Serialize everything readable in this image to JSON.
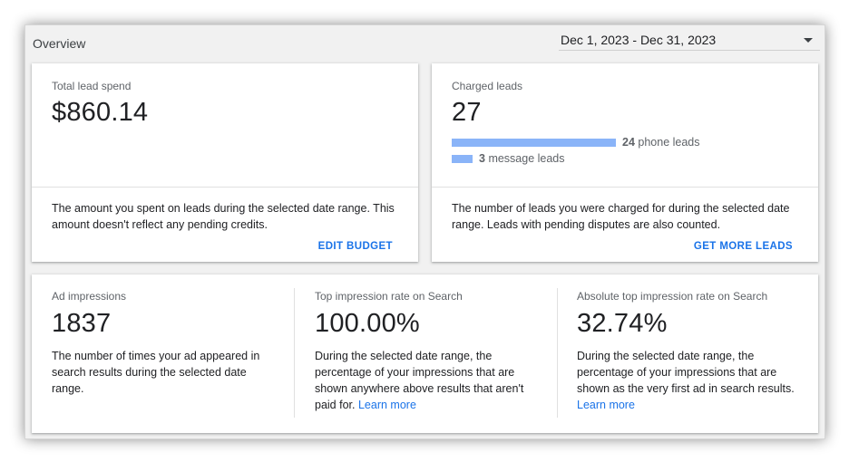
{
  "header": {
    "title": "Overview",
    "date_range": "Dec 1, 2023 - Dec 31, 2023"
  },
  "spend_card": {
    "label": "Total lead spend",
    "value": "$860.14",
    "description": "The amount you spent on leads during the selected date range. This amount doesn't reflect any pending credits.",
    "action": "EDIT BUDGET"
  },
  "leads_card": {
    "label": "Charged leads",
    "value": "27",
    "breakdown": [
      {
        "count": "24",
        "label": "phone leads",
        "leads": 24
      },
      {
        "count": "3",
        "label": "message leads",
        "leads": 3
      }
    ],
    "description": "The number of leads you were charged for during the selected date range. Leads with pending disputes are also counted.",
    "action": "GET MORE LEADS"
  },
  "metrics": [
    {
      "label": "Ad impressions",
      "value": "1837",
      "description": "The number of times your ad appeared in search results during the selected date range.",
      "link": ""
    },
    {
      "label": "Top impression rate on Search",
      "value": "100.00%",
      "description": "During the selected date range, the percentage of your impressions that are shown anywhere above results that aren't paid for.",
      "link": "Learn more"
    },
    {
      "label": "Absolute top impression rate on Search",
      "value": "32.74%",
      "description": "During the selected date range, the percentage of your impressions that are shown as the very first ad in search results.",
      "link": "Learn more"
    }
  ],
  "colors": {
    "accent": "#1a73e8",
    "bar": "#8ab4f8"
  }
}
